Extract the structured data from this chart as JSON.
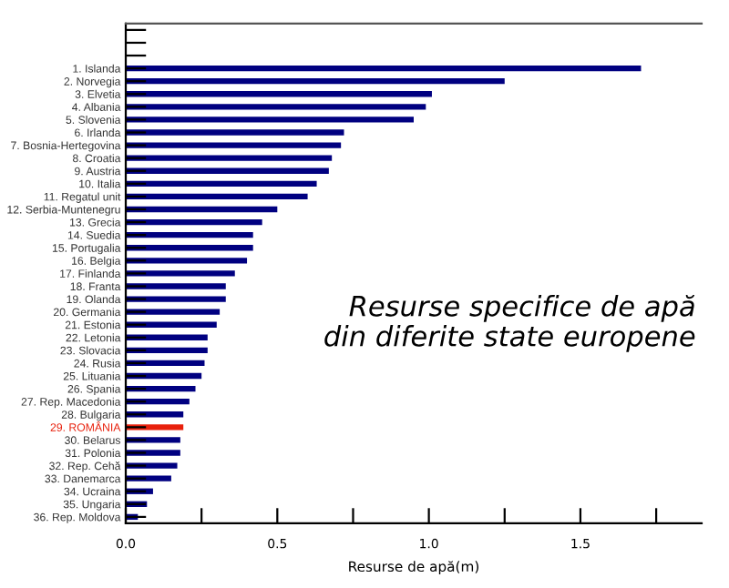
{
  "chart_data": {
    "type": "bar",
    "orientation": "horizontal",
    "title": "Resurse specifice de apă\ndin diferite state europene",
    "xlabel": "Resurse de apă(m)",
    "categories": [
      null,
      null,
      null,
      "1. Islanda",
      "2. Norvegia",
      "3. Elvetia",
      "4. Albania",
      "5. Slovenia",
      "6. Irlanda",
      "7. Bosnia-Hertegovina",
      "8. Croatia",
      "9. Austria",
      "10. Italia",
      "11. Regatul unit",
      "12. Serbia-Muntenegru",
      "13. Grecia",
      "14. Suedia",
      "15. Portugalia",
      "16. Belgia",
      "17. Finlanda",
      "18. Franta",
      "19. Olanda",
      "20. Germania",
      "21. Estonia",
      "22. Letonia",
      "23. Slovacia",
      "24. Rusia",
      "25. Lituania",
      "26. Spania",
      "27. Rep. Macedonia",
      "28. Bulgaria",
      "29. ROMÂNIA",
      "30. Belarus",
      "31. Polonia",
      "32. Rep. Cehă",
      "33. Danemarca",
      "34. Ucraina",
      "35. Ungaria",
      "36. Rep. Moldova"
    ],
    "values": [
      null,
      null,
      null,
      1.7,
      1.25,
      1.01,
      0.99,
      0.95,
      0.72,
      0.71,
      0.68,
      0.67,
      0.63,
      0.6,
      0.5,
      0.45,
      0.42,
      0.42,
      0.4,
      0.36,
      0.33,
      0.33,
      0.31,
      0.3,
      0.27,
      0.27,
      0.26,
      0.25,
      0.23,
      0.21,
      0.19,
      0.19,
      0.18,
      0.18,
      0.17,
      0.15,
      0.09,
      0.07,
      0.04
    ],
    "colors": [
      "#000080",
      "#000080",
      "#000080",
      "#000080",
      "#000080",
      "#000080",
      "#000080",
      "#000080",
      "#000080",
      "#000080",
      "#000080",
      "#000080",
      "#000080",
      "#000080",
      "#000080",
      "#000080",
      "#000080",
      "#000080",
      "#000080",
      "#000080",
      "#000080",
      "#000080",
      "#000080",
      "#000080",
      "#000080",
      "#000080",
      "#000080",
      "#000080",
      "#000080",
      "#000080",
      "#000080",
      "#e8200c",
      "#000080",
      "#000080",
      "#000080",
      "#000080",
      "#000080",
      "#000080",
      "#000080"
    ],
    "xlim": [
      0,
      1.9
    ],
    "xticks": [
      {
        "value": 0,
        "label": "0.0"
      },
      {
        "value": 0.25,
        "label": null
      },
      {
        "value": 0.5,
        "label": "0.5"
      },
      {
        "value": 0.75,
        "label": null
      },
      {
        "value": 1.0,
        "label": "1.0"
      },
      {
        "value": 1.25,
        "label": null
      },
      {
        "value": 1.5,
        "label": "1.5"
      },
      {
        "value": 1.75,
        "label": null
      }
    ],
    "grid": false,
    "legend": false
  }
}
